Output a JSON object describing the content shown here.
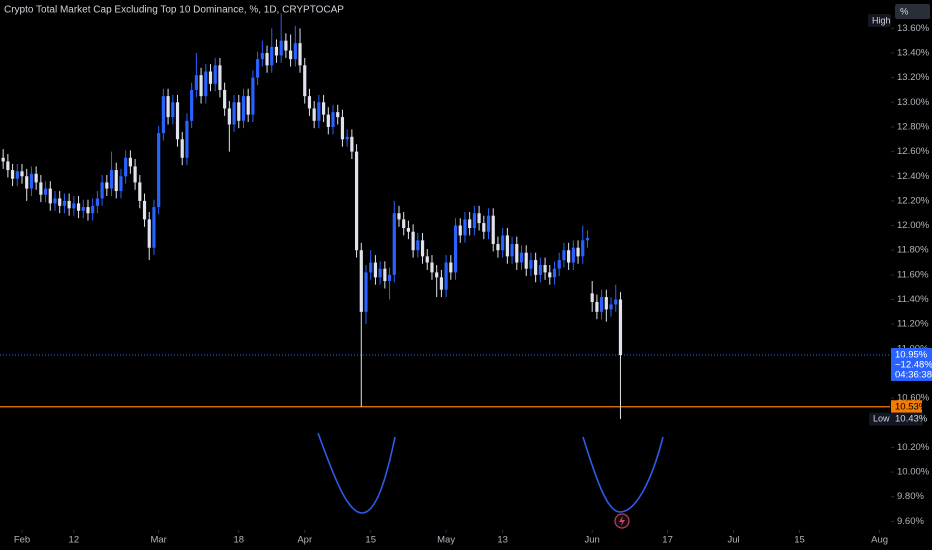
{
  "chart_data": {
    "type": "candlestick",
    "title": "Crypto Total Market Cap Excluding Top 10 Dominance, %, 1D, CRYPTOCAP",
    "scale_unit": "%",
    "x": [
      -4,
      -3,
      -2,
      -1,
      0,
      1,
      2,
      3,
      4,
      5,
      6,
      7,
      8,
      9,
      10,
      11,
      12,
      13,
      14,
      15,
      16,
      17,
      18,
      19,
      20,
      21,
      22,
      23,
      24,
      25,
      26,
      27,
      28,
      29,
      30,
      31,
      32,
      33,
      34,
      35,
      36,
      37,
      38,
      39,
      40,
      41,
      42,
      43,
      44,
      45,
      46,
      47,
      48,
      49,
      50,
      51,
      52,
      53,
      54,
      55,
      56,
      57,
      58,
      59,
      60,
      61,
      62,
      63,
      64,
      65,
      66,
      67,
      68,
      69,
      70,
      71,
      72,
      73,
      74,
      75,
      76,
      77,
      78,
      79,
      80,
      81,
      82,
      83,
      84,
      85,
      86,
      87,
      88,
      89,
      90,
      91,
      92,
      93,
      94,
      95,
      96,
      97,
      98,
      99,
      100,
      101,
      102,
      103,
      104,
      105,
      106,
      107,
      108,
      109,
      110,
      111,
      112,
      113,
      114,
      115,
      116,
      117,
      118,
      119,
      120,
      121,
      122,
      123,
      124,
      125,
      126,
      127
    ],
    "open": [
      12.55,
      12.52,
      12.45,
      12.38,
      12.44,
      12.4,
      12.3,
      12.42,
      12.35,
      12.25,
      12.3,
      12.18,
      12.22,
      12.16,
      12.2,
      12.14,
      12.18,
      12.12,
      12.15,
      12.1,
      12.16,
      12.22,
      12.35,
      12.3,
      12.45,
      12.28,
      12.4,
      12.55,
      12.48,
      12.35,
      12.2,
      12.05,
      11.82,
      12.15,
      12.75,
      13.05,
      12.88,
      13.0,
      12.7,
      12.55,
      12.85,
      13.1,
      13.22,
      13.05,
      13.25,
      13.15,
      13.3,
      13.1,
      12.95,
      12.82,
      13.0,
      12.85,
      13.05,
      12.9,
      13.2,
      13.35,
      13.4,
      13.3,
      13.45,
      13.38,
      13.5,
      13.42,
      13.35,
      13.48,
      13.3,
      13.05,
      12.95,
      12.85,
      13.0,
      12.9,
      12.8,
      12.92,
      12.88,
      12.7,
      12.72,
      12.6,
      11.8,
      11.3,
      11.62,
      11.7,
      11.58,
      11.65,
      11.55,
      11.6,
      12.1,
      12.05,
      11.98,
      11.95,
      11.8,
      11.88,
      11.75,
      11.7,
      11.62,
      11.58,
      11.48,
      11.7,
      11.62,
      12.0,
      11.92,
      12.05,
      11.98,
      12.1,
      12.02,
      11.95,
      12.08,
      11.85,
      11.8,
      11.92,
      11.75,
      11.85,
      11.7,
      11.78,
      11.65,
      11.72,
      11.6,
      11.68,
      11.62,
      11.58,
      11.65,
      11.72,
      11.8,
      11.7,
      11.82,
      11.75,
      11.88,
      11.45,
      11.38,
      11.3,
      11.42,
      11.32,
      11.36,
      11.4
    ],
    "high": [
      12.62,
      12.58,
      12.5,
      12.5,
      12.5,
      12.46,
      12.48,
      12.48,
      12.41,
      12.36,
      12.36,
      12.28,
      12.28,
      12.26,
      12.26,
      12.24,
      12.24,
      12.21,
      12.21,
      12.22,
      12.28,
      12.41,
      12.41,
      12.6,
      12.51,
      12.46,
      12.61,
      12.61,
      12.54,
      12.41,
      12.26,
      12.11,
      12.21,
      12.81,
      13.11,
      13.11,
      13.06,
      13.06,
      12.76,
      12.91,
      13.16,
      13.4,
      13.28,
      13.31,
      13.31,
      13.36,
      13.36,
      13.16,
      13.01,
      13.06,
      13.06,
      13.11,
      13.11,
      13.26,
      13.41,
      13.5,
      13.46,
      13.6,
      13.51,
      13.72,
      13.56,
      13.55,
      13.62,
      13.6,
      13.36,
      13.11,
      13.01,
      13.06,
      13.06,
      12.96,
      12.98,
      12.98,
      12.94,
      12.78,
      12.78,
      12.66,
      11.86,
      11.68,
      11.8,
      11.76,
      11.71,
      11.71,
      11.66,
      12.2,
      12.16,
      12.11,
      12.04,
      12.01,
      11.94,
      11.94,
      11.81,
      11.76,
      11.68,
      11.64,
      11.76,
      11.76,
      12.06,
      12.06,
      12.11,
      12.11,
      12.16,
      12.16,
      12.08,
      12.14,
      12.14,
      11.91,
      11.98,
      11.98,
      11.91,
      11.91,
      11.84,
      11.84,
      11.78,
      11.78,
      11.74,
      11.74,
      11.68,
      11.71,
      11.78,
      11.86,
      11.86,
      11.88,
      11.88,
      12.0,
      11.96,
      11.55,
      11.44,
      11.48,
      11.48,
      11.42,
      11.52,
      11.46
    ],
    "low": [
      12.46,
      12.39,
      12.32,
      12.32,
      12.34,
      12.2,
      12.24,
      12.29,
      12.19,
      12.19,
      12.12,
      12.12,
      12.1,
      12.1,
      12.08,
      12.08,
      12.06,
      12.06,
      12.04,
      12.04,
      12.1,
      12.16,
      12.24,
      12.24,
      12.22,
      12.22,
      12.34,
      12.42,
      12.29,
      12.14,
      11.99,
      11.72,
      11.76,
      12.09,
      12.69,
      12.82,
      12.82,
      12.64,
      12.49,
      12.49,
      12.79,
      13.04,
      12.99,
      12.99,
      13.09,
      13.09,
      13.04,
      12.89,
      12.6,
      12.76,
      12.79,
      12.79,
      12.84,
      12.84,
      13.14,
      13.29,
      13.24,
      13.24,
      13.32,
      13.32,
      13.36,
      13.29,
      13.29,
      13.24,
      12.99,
      12.89,
      12.79,
      12.79,
      12.84,
      12.74,
      12.74,
      12.82,
      12.64,
      12.64,
      12.54,
      11.74,
      10.53,
      11.2,
      11.56,
      11.52,
      11.52,
      11.49,
      11.4,
      11.54,
      11.99,
      11.92,
      11.89,
      11.74,
      11.74,
      11.69,
      11.64,
      11.56,
      11.42,
      11.42,
      11.42,
      11.56,
      11.56,
      11.86,
      11.86,
      11.92,
      11.92,
      11.96,
      11.89,
      11.89,
      11.79,
      11.74,
      11.74,
      11.69,
      11.69,
      11.64,
      11.64,
      11.59,
      11.59,
      11.54,
      11.54,
      11.56,
      11.52,
      11.52,
      11.59,
      11.66,
      11.64,
      11.64,
      11.69,
      11.69,
      11.82,
      11.3,
      11.24,
      11.24,
      11.22,
      11.26,
      11.3,
      10.43
    ],
    "close": [
      12.52,
      12.45,
      12.38,
      12.44,
      12.4,
      12.3,
      12.42,
      12.35,
      12.25,
      12.3,
      12.18,
      12.22,
      12.16,
      12.2,
      12.14,
      12.18,
      12.12,
      12.15,
      12.1,
      12.16,
      12.22,
      12.35,
      12.3,
      12.45,
      12.28,
      12.4,
      12.55,
      12.48,
      12.35,
      12.2,
      12.05,
      11.82,
      12.15,
      12.75,
      13.05,
      12.88,
      13.0,
      12.7,
      12.55,
      12.85,
      13.1,
      13.22,
      13.05,
      13.25,
      13.15,
      13.3,
      13.1,
      12.95,
      12.82,
      13.0,
      12.85,
      13.05,
      12.9,
      13.2,
      13.35,
      13.4,
      13.3,
      13.45,
      13.38,
      13.5,
      13.42,
      13.35,
      13.48,
      13.3,
      13.05,
      12.95,
      12.85,
      13.0,
      12.9,
      12.8,
      12.92,
      12.88,
      12.7,
      12.72,
      12.6,
      11.8,
      11.3,
      11.62,
      11.7,
      11.58,
      11.65,
      11.55,
      11.6,
      12.1,
      12.05,
      11.98,
      11.95,
      11.8,
      11.88,
      11.75,
      11.7,
      11.62,
      11.58,
      11.48,
      11.7,
      11.62,
      12.0,
      11.92,
      12.05,
      11.98,
      12.1,
      12.02,
      11.95,
      12.08,
      11.85,
      11.8,
      11.92,
      11.75,
      11.85,
      11.7,
      11.78,
      11.65,
      11.72,
      11.6,
      11.68,
      11.62,
      11.58,
      11.65,
      11.72,
      11.8,
      11.7,
      11.82,
      11.75,
      11.88,
      11.9,
      11.38,
      11.3,
      11.42,
      11.32,
      11.36,
      11.4,
      10.95
    ],
    "up_color": "#2962ff",
    "down_color": "#e0e3eb",
    "xlim": [
      -4.67,
      184.2
    ],
    "xticks": [
      {
        "value": 0,
        "label": "Feb"
      },
      {
        "value": 11,
        "label": "12"
      },
      {
        "value": 29,
        "label": "Mar"
      },
      {
        "value": 46,
        "label": "18"
      },
      {
        "value": 60,
        "label": "Apr"
      },
      {
        "value": 74,
        "label": "15"
      },
      {
        "value": 90,
        "label": "May"
      },
      {
        "value": 102,
        "label": "13"
      },
      {
        "value": 121,
        "label": "Jun"
      },
      {
        "value": 137,
        "label": "17"
      },
      {
        "value": 151,
        "label": "Jul"
      },
      {
        "value": 165,
        "label": "15"
      },
      {
        "value": 182,
        "label": "Aug"
      }
    ],
    "ylim": [
      9.53,
      13.83
    ],
    "yticks": [
      {
        "value": 9.6,
        "label": "9.60%"
      },
      {
        "value": 9.8,
        "label": "9.80%"
      },
      {
        "value": 10,
        "label": "10.00%"
      },
      {
        "value": 10.2,
        "label": "10.20%"
      },
      {
        "value": 10.6,
        "label": "10.60%"
      },
      {
        "value": 11,
        "label": "11.00%"
      },
      {
        "value": 11.2,
        "label": "11.20%"
      },
      {
        "value": 11.4,
        "label": "11.40%"
      },
      {
        "value": 11.6,
        "label": "11.60%"
      },
      {
        "value": 11.8,
        "label": "11.80%"
      },
      {
        "value": 12,
        "label": "12.00%"
      },
      {
        "value": 12.2,
        "label": "12.20%"
      },
      {
        "value": 12.4,
        "label": "12.40%"
      },
      {
        "value": 12.6,
        "label": "12.60%"
      },
      {
        "value": 12.8,
        "label": "12.80%"
      },
      {
        "value": 13,
        "label": "13.00%"
      },
      {
        "value": 13.2,
        "label": "13.20%"
      },
      {
        "value": 13.4,
        "label": "13.40%"
      },
      {
        "value": 13.6,
        "label": "13.60%"
      }
    ],
    "grid": false,
    "high_label": "High",
    "last_price": {
      "value": 10.95,
      "label": "10.95%",
      "change": "−12.48%",
      "countdown": "04:36:38",
      "color": "#2962ff"
    },
    "level_line": {
      "value": 10.53,
      "label": "10.53%",
      "color": "#f57c00"
    },
    "low_marker": {
      "label": "Low",
      "value": 10.43,
      "value_label": "10.43%"
    }
  }
}
